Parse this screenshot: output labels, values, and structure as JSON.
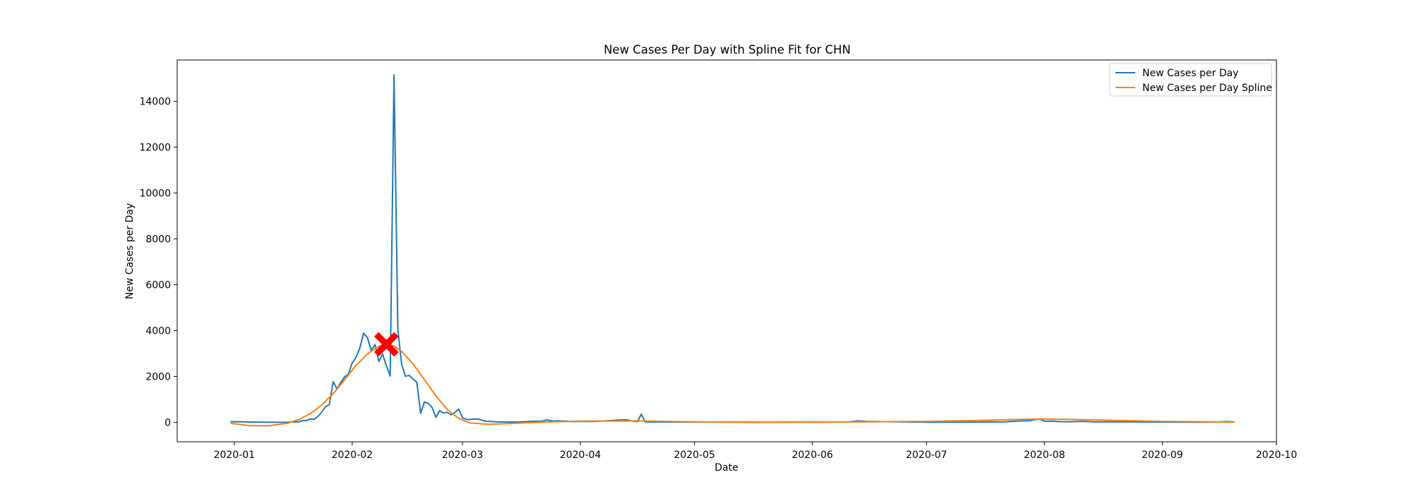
{
  "chart_data": {
    "type": "line",
    "title": "New Cases Per Day with Spline Fit for CHN",
    "xlabel": "Date",
    "ylabel": "New Cases per Day",
    "xlim": [
      "2019-12-17",
      "2020-10-01"
    ],
    "ylim": [
      -850,
      15800
    ],
    "x_ticks": [
      "2020-01",
      "2020-02",
      "2020-03",
      "2020-04",
      "2020-05",
      "2020-06",
      "2020-07",
      "2020-08",
      "2020-09",
      "2020-10"
    ],
    "y_ticks": [
      0,
      2000,
      4000,
      6000,
      8000,
      10000,
      12000,
      14000
    ],
    "legend_position": "top-right",
    "grid": false,
    "series": [
      {
        "name": "New Cases per Day",
        "color": "#1f77b4",
        "points": [
          [
            "2019-12-31",
            27
          ],
          [
            "2020-01-03",
            17
          ],
          [
            "2020-01-06",
            10
          ],
          [
            "2020-01-09",
            2
          ],
          [
            "2020-01-12",
            0
          ],
          [
            "2020-01-15",
            4
          ],
          [
            "2020-01-18",
            17
          ],
          [
            "2020-01-19",
            77
          ],
          [
            "2020-01-20",
            77
          ],
          [
            "2020-01-21",
            149
          ],
          [
            "2020-01-22",
            131
          ],
          [
            "2020-01-23",
            259
          ],
          [
            "2020-01-24",
            444
          ],
          [
            "2020-01-25",
            688
          ],
          [
            "2020-01-26",
            769
          ],
          [
            "2020-01-27",
            1771
          ],
          [
            "2020-01-28",
            1459
          ],
          [
            "2020-01-29",
            1737
          ],
          [
            "2020-01-30",
            1981
          ],
          [
            "2020-01-31",
            2099
          ],
          [
            "2020-02-01",
            2589
          ],
          [
            "2020-02-02",
            2825
          ],
          [
            "2020-02-03",
            3235
          ],
          [
            "2020-02-04",
            3884
          ],
          [
            "2020-02-05",
            3694
          ],
          [
            "2020-02-06",
            3143
          ],
          [
            "2020-02-07",
            3385
          ],
          [
            "2020-02-08",
            2652
          ],
          [
            "2020-02-09",
            2973
          ],
          [
            "2020-02-10",
            2467
          ],
          [
            "2020-02-11",
            2015
          ],
          [
            "2020-02-12",
            15152
          ],
          [
            "2020-02-13",
            4050
          ],
          [
            "2020-02-14",
            2538
          ],
          [
            "2020-02-15",
            2007
          ],
          [
            "2020-02-16",
            2048
          ],
          [
            "2020-02-17",
            1886
          ],
          [
            "2020-02-18",
            1749
          ],
          [
            "2020-02-19",
            394
          ],
          [
            "2020-02-20",
            889
          ],
          [
            "2020-02-21",
            823
          ],
          [
            "2020-02-22",
            648
          ],
          [
            "2020-02-23",
            214
          ],
          [
            "2020-02-24",
            508
          ],
          [
            "2020-02-25",
            406
          ],
          [
            "2020-02-26",
            433
          ],
          [
            "2020-02-27",
            327
          ],
          [
            "2020-02-28",
            427
          ],
          [
            "2020-02-29",
            573
          ],
          [
            "2020-03-01",
            202
          ],
          [
            "2020-03-02",
            125
          ],
          [
            "2020-03-03",
            119
          ],
          [
            "2020-03-04",
            139
          ],
          [
            "2020-03-05",
            143
          ],
          [
            "2020-03-06",
            99
          ],
          [
            "2020-03-07",
            44
          ],
          [
            "2020-03-08",
            40
          ],
          [
            "2020-03-10",
            19
          ],
          [
            "2020-03-13",
            11
          ],
          [
            "2020-03-16",
            16
          ],
          [
            "2020-03-19",
            39
          ],
          [
            "2020-03-20",
            41
          ],
          [
            "2020-03-21",
            46
          ],
          [
            "2020-03-22",
            45
          ],
          [
            "2020-03-23",
            103
          ],
          [
            "2020-03-24",
            78
          ],
          [
            "2020-03-25",
            47
          ],
          [
            "2020-03-26",
            67
          ],
          [
            "2020-03-27",
            55
          ],
          [
            "2020-03-28",
            54
          ],
          [
            "2020-03-30",
            31
          ],
          [
            "2020-04-01",
            36
          ],
          [
            "2020-04-05",
            39
          ],
          [
            "2020-04-08",
            63
          ],
          [
            "2020-04-11",
            99
          ],
          [
            "2020-04-13",
            108
          ],
          [
            "2020-04-15",
            46
          ],
          [
            "2020-04-16",
            26
          ],
          [
            "2020-04-17",
            352
          ],
          [
            "2020-04-18",
            20
          ],
          [
            "2020-04-20",
            12
          ],
          [
            "2020-04-25",
            11
          ],
          [
            "2020-05-01",
            12
          ],
          [
            "2020-05-10",
            14
          ],
          [
            "2020-05-20",
            5
          ],
          [
            "2020-06-01",
            16
          ],
          [
            "2020-06-10",
            11
          ],
          [
            "2020-06-13",
            57
          ],
          [
            "2020-06-15",
            40
          ],
          [
            "2020-06-20",
            26
          ],
          [
            "2020-07-01",
            3
          ],
          [
            "2020-07-10",
            7
          ],
          [
            "2020-07-15",
            8
          ],
          [
            "2020-07-18",
            22
          ],
          [
            "2020-07-21",
            14
          ],
          [
            "2020-07-24",
            46
          ],
          [
            "2020-07-27",
            64
          ],
          [
            "2020-07-28",
            68
          ],
          [
            "2020-07-29",
            101
          ],
          [
            "2020-07-30",
            127
          ],
          [
            "2020-07-31",
            127
          ],
          [
            "2020-08-01",
            45
          ],
          [
            "2020-08-03",
            49
          ],
          [
            "2020-08-05",
            27
          ],
          [
            "2020-08-08",
            23
          ],
          [
            "2020-08-11",
            44
          ],
          [
            "2020-08-14",
            22
          ],
          [
            "2020-08-17",
            22
          ],
          [
            "2020-08-20",
            22
          ],
          [
            "2020-08-25",
            15
          ],
          [
            "2020-09-01",
            10
          ],
          [
            "2020-09-10",
            7
          ],
          [
            "2020-09-15",
            10
          ],
          [
            "2020-09-18",
            32
          ],
          [
            "2020-09-20",
            14
          ]
        ]
      },
      {
        "name": "New Cases per Day Spline",
        "color": "#ff7f0e",
        "points": [
          [
            "2019-12-31",
            -40
          ],
          [
            "2020-01-05",
            -150
          ],
          [
            "2020-01-10",
            -150
          ],
          [
            "2020-01-15",
            -40
          ],
          [
            "2020-01-18",
            120
          ],
          [
            "2020-01-21",
            380
          ],
          [
            "2020-01-24",
            750
          ],
          [
            "2020-01-27",
            1250
          ],
          [
            "2020-01-30",
            1850
          ],
          [
            "2020-02-02",
            2480
          ],
          [
            "2020-02-05",
            2980
          ],
          [
            "2020-02-08",
            3310
          ],
          [
            "2020-02-10",
            3400
          ],
          [
            "2020-02-12",
            3320
          ],
          [
            "2020-02-14",
            3090
          ],
          [
            "2020-02-17",
            2550
          ],
          [
            "2020-02-20",
            1860
          ],
          [
            "2020-02-23",
            1150
          ],
          [
            "2020-02-26",
            560
          ],
          [
            "2020-02-29",
            170
          ],
          [
            "2020-03-03",
            -30
          ],
          [
            "2020-03-08",
            -90
          ],
          [
            "2020-03-15",
            -40
          ],
          [
            "2020-03-22",
            10
          ],
          [
            "2020-04-01",
            50
          ],
          [
            "2020-04-15",
            60
          ],
          [
            "2020-05-01",
            20
          ],
          [
            "2020-05-15",
            0
          ],
          [
            "2020-06-01",
            5
          ],
          [
            "2020-06-15",
            20
          ],
          [
            "2020-07-01",
            40
          ],
          [
            "2020-07-15",
            80
          ],
          [
            "2020-07-25",
            125
          ],
          [
            "2020-08-01",
            140
          ],
          [
            "2020-08-10",
            120
          ],
          [
            "2020-08-20",
            80
          ],
          [
            "2020-09-01",
            40
          ],
          [
            "2020-09-20",
            10
          ]
        ]
      }
    ],
    "marker": {
      "date": "2020-02-10",
      "value": 3400,
      "color": "#ff0000",
      "shape": "X"
    }
  }
}
